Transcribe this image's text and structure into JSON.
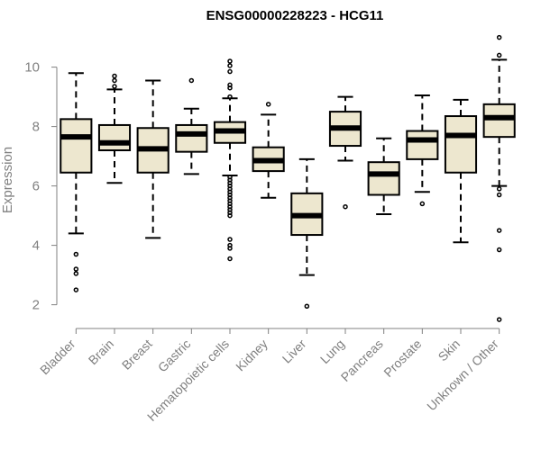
{
  "chart_data": {
    "type": "boxplot",
    "title": "ENSG00000228223 - HCG11",
    "xlabel": "",
    "ylabel": "Expression",
    "ylim": [
      1.2,
      11.2
    ],
    "yticks": [
      2,
      4,
      6,
      8,
      10
    ],
    "colors": {
      "box_fill": "#EDE7CF",
      "stroke": "#000000",
      "axis_text": "#808080"
    },
    "categories": [
      "Bladder",
      "Brain",
      "Breast",
      "Gastric",
      "Hematopoietic cells",
      "Kidney",
      "Liver",
      "Lung",
      "Pancreas",
      "Prostate",
      "Skin",
      "Unknown / Other"
    ],
    "boxes": [
      {
        "category": "Bladder",
        "whisker_low": 4.4,
        "q1": 6.45,
        "median": 7.65,
        "q3": 8.25,
        "whisker_high": 9.8,
        "outliers": [
          3.7,
          3.2,
          3.05,
          2.5
        ]
      },
      {
        "category": "Brain",
        "whisker_low": 6.1,
        "q1": 7.2,
        "median": 7.45,
        "q3": 8.05,
        "whisker_high": 9.25,
        "outliers": [
          9.35,
          9.55,
          9.7
        ]
      },
      {
        "category": "Breast",
        "whisker_low": 4.25,
        "q1": 6.45,
        "median": 7.25,
        "q3": 7.95,
        "whisker_high": 9.55,
        "outliers": []
      },
      {
        "category": "Gastric",
        "whisker_low": 6.4,
        "q1": 7.15,
        "median": 7.75,
        "q3": 8.05,
        "whisker_high": 8.6,
        "outliers": [
          9.55
        ]
      },
      {
        "category": "Hematopoietic cells",
        "whisker_low": 6.35,
        "q1": 7.45,
        "median": 7.85,
        "q3": 8.15,
        "whisker_high": 8.95,
        "outliers": [
          10.2,
          10.05,
          9.85,
          9.4,
          9.3,
          9.0,
          6.3,
          6.2,
          6.1,
          6.0,
          5.9,
          5.8,
          5.7,
          5.6,
          5.5,
          5.4,
          5.3,
          5.2,
          5.1,
          5.0,
          4.2,
          4.0,
          3.9,
          3.55
        ]
      },
      {
        "category": "Kidney",
        "whisker_low": 5.6,
        "q1": 6.5,
        "median": 6.85,
        "q3": 7.3,
        "whisker_high": 8.4,
        "outliers": [
          8.75
        ]
      },
      {
        "category": "Liver",
        "whisker_low": 3.0,
        "q1": 4.35,
        "median": 5.0,
        "q3": 5.75,
        "whisker_high": 6.9,
        "outliers": [
          1.95
        ]
      },
      {
        "category": "Lung",
        "whisker_low": 6.85,
        "q1": 7.35,
        "median": 7.95,
        "q3": 8.5,
        "whisker_high": 9.0,
        "outliers": [
          5.3
        ]
      },
      {
        "category": "Pancreas",
        "whisker_low": 5.05,
        "q1": 5.7,
        "median": 6.4,
        "q3": 6.8,
        "whisker_high": 7.6,
        "outliers": []
      },
      {
        "category": "Prostate",
        "whisker_low": 5.8,
        "q1": 6.9,
        "median": 7.55,
        "q3": 7.85,
        "whisker_high": 9.05,
        "outliers": [
          5.4
        ]
      },
      {
        "category": "Skin",
        "whisker_low": 4.1,
        "q1": 6.45,
        "median": 7.7,
        "q3": 8.35,
        "whisker_high": 8.9,
        "outliers": []
      },
      {
        "category": "Unknown / Other",
        "whisker_low": 6.0,
        "q1": 7.65,
        "median": 8.3,
        "q3": 8.75,
        "whisker_high": 10.25,
        "outliers": [
          11.0,
          10.4,
          5.9,
          5.7,
          4.5,
          3.85,
          1.5
        ]
      }
    ]
  }
}
